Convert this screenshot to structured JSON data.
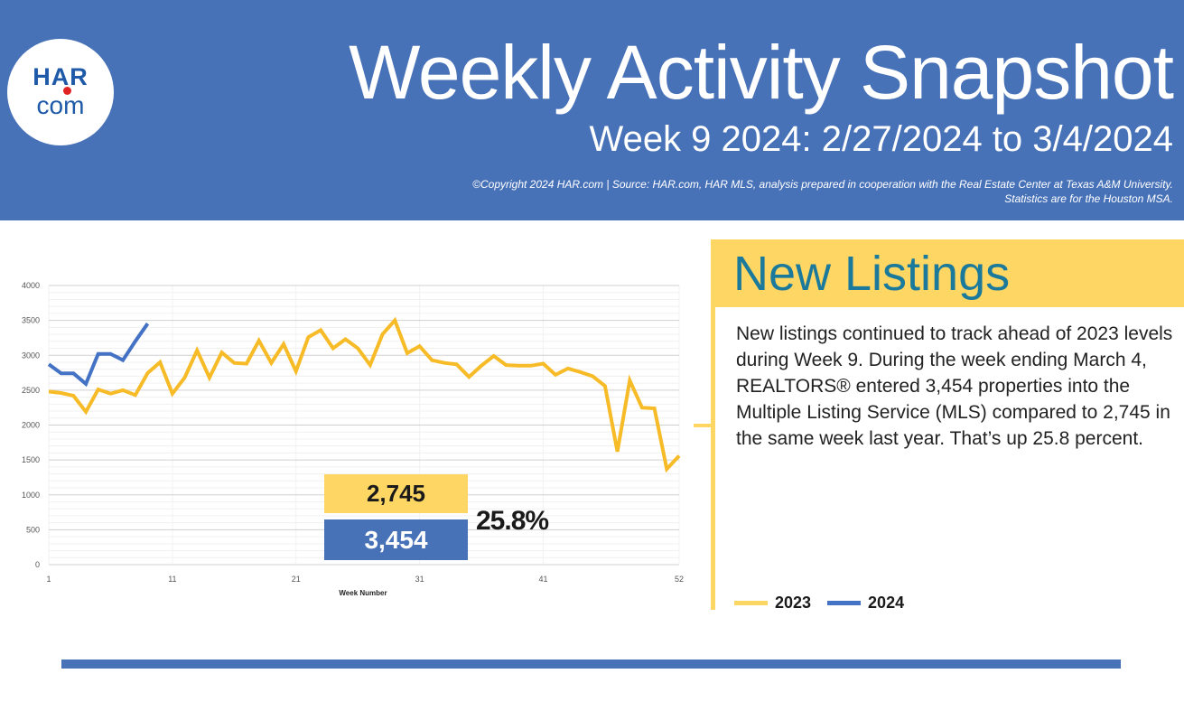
{
  "header": {
    "logo_top": "HAR",
    "logo_bottom": "com",
    "title": "Weekly Activity Snapshot",
    "subtitle": "Week 9 2024: 2/27/2024 to 3/4/2024",
    "credit_line1": "©Copyright 2024 HAR.com  |  Source: HAR.com, HAR MLS, analysis prepared in cooperation with the Real Estate Center at Texas A&M University.",
    "credit_line2": "Statistics are for the Houston MSA.",
    "bg_color": "#4872b8"
  },
  "callouts": {
    "value_2023": "2,745",
    "value_2024": "3,454",
    "change": "25.8%"
  },
  "panel": {
    "title": "New Listings",
    "body": "New listings continued to track ahead of 2023 levels during Week 9. During the week ending March 4, REALTORS® entered 3,454 properties into the Multiple Listing Service (MLS) compared to 2,745 in the same week last year. That’s up 25.8 percent.",
    "accent_color": "#fdd663",
    "title_color": "#1b7a9c"
  },
  "chart_data": {
    "type": "line",
    "title": "",
    "xlabel": "Week Number",
    "ylabel": "",
    "xlim": [
      1,
      52
    ],
    "ylim": [
      0,
      4000
    ],
    "yticks": [
      0,
      500,
      1000,
      1500,
      2000,
      2500,
      3000,
      3500,
      4000
    ],
    "xticks": [
      1,
      11,
      21,
      31,
      41,
      52
    ],
    "grid": true,
    "legend_position": "bottom-right",
    "series": [
      {
        "name": "2023",
        "color": "#f6bb27",
        "legend_color": "#fdd663",
        "x": [
          1,
          2,
          3,
          4,
          5,
          6,
          7,
          8,
          9,
          10,
          11,
          12,
          13,
          14,
          15,
          16,
          17,
          18,
          19,
          20,
          21,
          22,
          23,
          24,
          25,
          26,
          27,
          28,
          29,
          30,
          31,
          32,
          33,
          34,
          35,
          36,
          37,
          38,
          39,
          40,
          41,
          42,
          43,
          44,
          45,
          46,
          47,
          48,
          49,
          50,
          51,
          52
        ],
        "values": [
          2480,
          2460,
          2420,
          2190,
          2510,
          2450,
          2500,
          2430,
          2745,
          2900,
          2450,
          2680,
          3070,
          2680,
          3040,
          2890,
          2880,
          3210,
          2890,
          3160,
          2770,
          3260,
          3360,
          3100,
          3230,
          3100,
          2860,
          3300,
          3500,
          3030,
          3130,
          2930,
          2890,
          2870,
          2690,
          2850,
          2990,
          2860,
          2850,
          2850,
          2880,
          2720,
          2810,
          2760,
          2700,
          2560,
          1620,
          2640,
          2250,
          2240,
          1370,
          1560
        ]
      },
      {
        "name": "2024",
        "color": "#4472c4",
        "legend_color": "#4472c4",
        "x": [
          1,
          2,
          3,
          4,
          5,
          6,
          7,
          8,
          9
        ],
        "values": [
          2870,
          2740,
          2740,
          2590,
          3020,
          3020,
          2930,
          3200,
          3454
        ]
      }
    ]
  }
}
